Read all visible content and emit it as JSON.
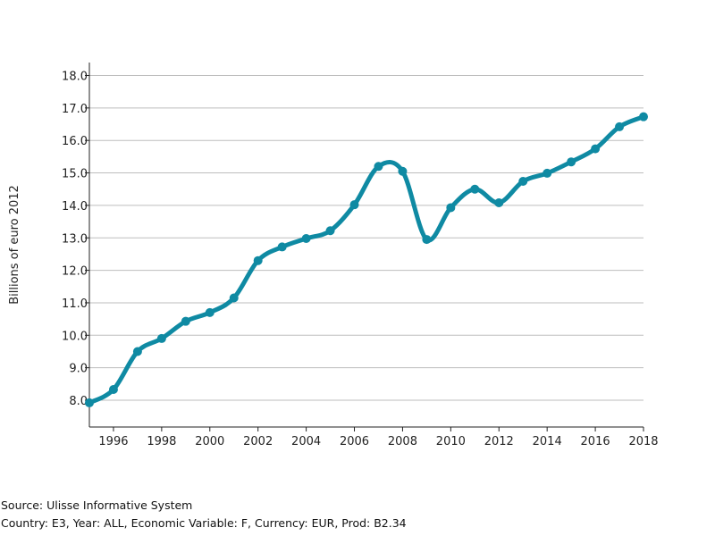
{
  "chart_data": {
    "type": "line",
    "title": "",
    "xlabel": "",
    "ylabel": "Billions of euro 2012",
    "xlim": [
      1995,
      2018
    ],
    "ylim": [
      7.1,
      18.4
    ],
    "x_ticks": [
      "1996",
      "1998",
      "2000",
      "2002",
      "2004",
      "2006",
      "2008",
      "2010",
      "2012",
      "2014",
      "2016",
      "2018"
    ],
    "y_ticks": [
      "8.0",
      "9.0",
      "10.0",
      "11.0",
      "12.0",
      "13.0",
      "14.0",
      "15.0",
      "16.0",
      "17.0",
      "18.0"
    ],
    "grid": "horizontal",
    "legend": "none",
    "color": "#0f8aa3",
    "series": [
      {
        "x": [
          1995,
          1996,
          1997,
          1998,
          1999,
          2000,
          2001,
          2002,
          2003,
          2004,
          2005,
          2006,
          2007,
          2008,
          2009,
          2010,
          2011,
          2012,
          2013,
          2014,
          2015,
          2016,
          2017,
          2018
        ],
        "values": [
          7.92,
          8.33,
          9.5,
          9.9,
          10.43,
          10.7,
          11.15,
          12.3,
          12.72,
          12.98,
          13.22,
          14.02,
          15.2,
          15.05,
          12.95,
          13.93,
          14.5,
          14.08,
          14.74,
          14.99,
          15.34,
          15.74,
          16.42,
          16.73
        ]
      }
    ]
  },
  "footer": {
    "source": "Source: Ulisse Informative System",
    "details": "Country: E3, Year: ALL, Economic Variable: F, Currency: EUR, Prod: B2.34"
  }
}
